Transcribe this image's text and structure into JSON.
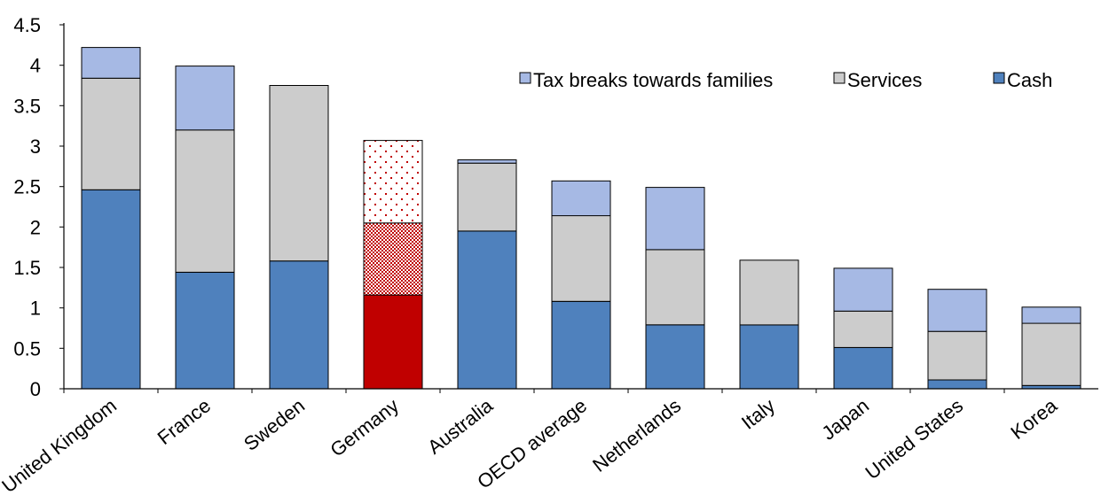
{
  "chart_data": {
    "type": "bar",
    "stacked": true,
    "categories": [
      "United Kingdom",
      "France",
      "Sweden",
      "Germany",
      "Australia",
      "OECD average",
      "Netherlands",
      "Italy",
      "Japan",
      "United States",
      "Korea"
    ],
    "series": [
      {
        "name": "Cash",
        "color": "#4f81bd",
        "values": [
          2.46,
          1.44,
          1.58,
          1.16,
          1.95,
          1.08,
          0.79,
          0.79,
          0.51,
          0.11,
          0.04
        ]
      },
      {
        "name": "Services",
        "color": "#cccccc",
        "values": [
          1.38,
          1.76,
          2.17,
          0.89,
          0.84,
          1.06,
          0.93,
          0.8,
          0.45,
          0.6,
          0.77
        ]
      },
      {
        "name": "Tax breaks towards families",
        "color": "#a6b9e4",
        "values": [
          0.38,
          0.79,
          0.0,
          1.02,
          0.04,
          0.43,
          0.77,
          0.0,
          0.53,
          0.52,
          0.2
        ]
      }
    ],
    "highlight": {
      "category": "Germany",
      "colors": {
        "Cash": "#c00000",
        "Services": "#c00000",
        "Tax breaks towards families": "#c00000"
      },
      "patterns": {
        "Cash": "solid",
        "Services": "checkered",
        "Tax breaks towards families": "dotted"
      }
    },
    "legend": {
      "order": [
        "Tax breaks towards families",
        "Services",
        "Cash"
      ],
      "placement": "top-right"
    },
    "y_ticks": [
      "0",
      "0.5",
      "1",
      "1.5",
      "2",
      "2.5",
      "3",
      "3.5",
      "4",
      "4.5"
    ],
    "ylim": [
      0,
      4.5
    ],
    "grid": false,
    "title": "",
    "xlabel": "",
    "ylabel": ""
  }
}
